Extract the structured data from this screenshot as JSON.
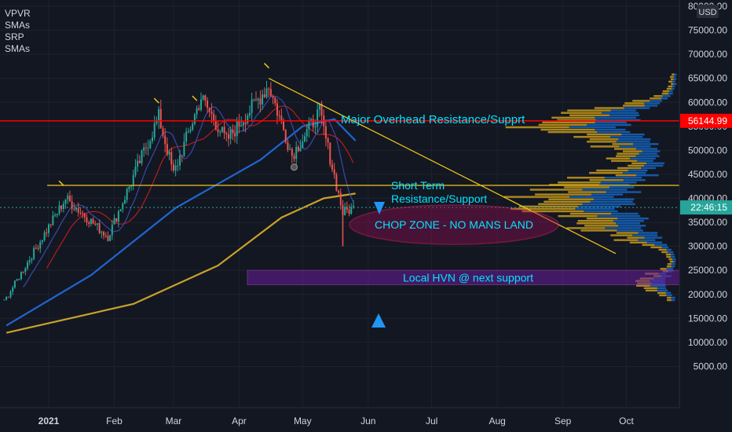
{
  "legend": [
    "VPVR",
    "SMAs",
    "SRP",
    "SMAs"
  ],
  "currency": "USD",
  "price_labels": {
    "resistance": "56144.99",
    "current": "22:46:15"
  },
  "annotations": {
    "major": "Major Overhead Resistance/Supprt",
    "short_1": "Short Term",
    "short_2": "Resistance/Support",
    "chop": "CHOP ZONE - NO MANS LAND",
    "hvn": "Local HVN @ next support"
  },
  "colors": {
    "background": "#131722",
    "grid": "#1e222d",
    "text": "#d1d4dc",
    "up": "#26a69a",
    "down": "#ef5350",
    "resistance": "#ff0000",
    "sma_blue": "#1e66d0",
    "sma_yellow": "#c9a227",
    "sma_red": "#b71c1c",
    "sma_thin": "#3949ab",
    "trend": "#f0c419",
    "annotation": "#00e5ff",
    "chop_fill": "#880e4f",
    "hvn_fill": "#6a1b9a",
    "vp_blue": "#1565c0",
    "vp_gold": "#c79a1b"
  },
  "chart_data": {
    "type": "candlestick",
    "symbol_overlays": [
      "VPVR",
      "SMAs",
      "SRP",
      "SMAs"
    ],
    "x_ticks": [
      "2021",
      "Feb",
      "Mar",
      "Apr",
      "May",
      "Jun",
      "Jul",
      "Aug",
      "Sep",
      "Oct"
    ],
    "y_ticks": [
      5000,
      10000,
      15000,
      20000,
      25000,
      30000,
      35000,
      40000,
      45000,
      50000,
      55000,
      60000,
      65000,
      70000,
      75000,
      80000
    ],
    "ylim": [
      0,
      82000
    ],
    "resistance_level": 56144.99,
    "short_term_level": 42700,
    "key_points": [
      {
        "date": "2020-12-10",
        "close": 18500
      },
      {
        "date": "2021-01-08",
        "close": 40000
      },
      {
        "date": "2021-01-28",
        "close": 32000
      },
      {
        "date": "2021-02-21",
        "close": 57000
      },
      {
        "date": "2021-02-28",
        "close": 45000
      },
      {
        "date": "2021-03-13",
        "close": 61000
      },
      {
        "date": "2021-03-25",
        "close": 52000
      },
      {
        "date": "2021-04-14",
        "close": 63500
      },
      {
        "date": "2021-04-25",
        "close": 49000
      },
      {
        "date": "2021-05-08",
        "close": 58000
      },
      {
        "date": "2021-05-19",
        "close": 37000
      },
      {
        "date": "2021-05-24",
        "close": 38000
      }
    ],
    "sma_blue": [
      [
        0,
        13500
      ],
      [
        40,
        24000
      ],
      [
        80,
        38000
      ],
      [
        120,
        48000
      ],
      [
        140,
        55000
      ],
      [
        155,
        56500
      ],
      [
        165,
        52000
      ]
    ],
    "sma_yellow": [
      [
        0,
        12000
      ],
      [
        60,
        18000
      ],
      [
        100,
        26000
      ],
      [
        130,
        36000
      ],
      [
        150,
        40000
      ],
      [
        165,
        41000
      ]
    ],
    "trendline": {
      "from": [
        "2021-04-14",
        65000
      ],
      "to": [
        "2021-09-25",
        28500
      ]
    },
    "zones": [
      {
        "name": "CHOP ZONE - NO MANS LAND",
        "center_price": 35000
      },
      {
        "name": "Local HVN @ next support",
        "low": 22000,
        "high": 25000
      }
    ]
  }
}
